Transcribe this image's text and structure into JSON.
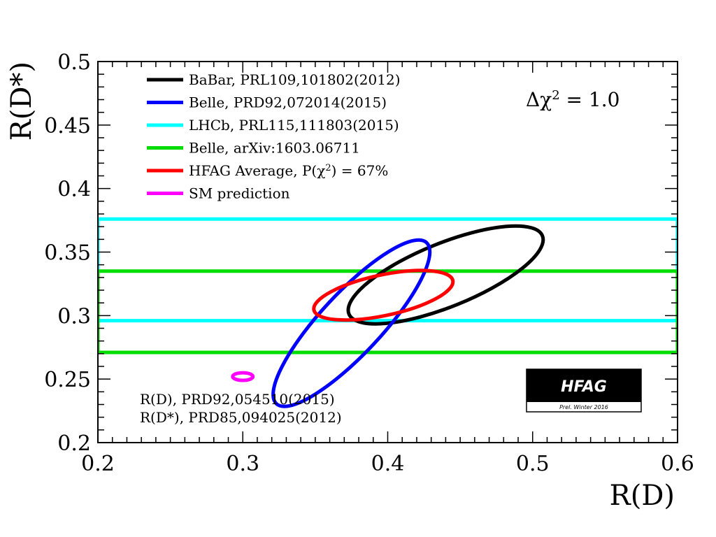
{
  "chart_data": {
    "type": "contour",
    "xlabel": "R(D)",
    "ylabel": "R(D*)",
    "xlim": [
      0.2,
      0.6
    ],
    "ylim": [
      0.2,
      0.5
    ],
    "x_ticks": [
      "0.2",
      "0.3",
      "0.4",
      "0.5",
      "0.6"
    ],
    "y_ticks": [
      "0.2",
      "0.25",
      "0.3",
      "0.35",
      "0.4",
      "0.45",
      "0.5"
    ],
    "annotation": "Δχ² = 1.0",
    "annotation_parts": {
      "prefix": "Δχ",
      "sup": "2",
      "suffix": " = 1.0"
    },
    "legend_position": "top-left",
    "series": [
      {
        "label": "BaBar, PRL109,101802(2012)",
        "color": "#000000",
        "shape": "ellipse",
        "center": [
          0.44,
          0.332
        ],
        "radii": [
          0.072,
          0.025
        ],
        "rotation_deg": -22
      },
      {
        "label": "Belle, PRD92,072014(2015)",
        "color": "#0000ff",
        "shape": "ellipse",
        "center": [
          0.375,
          0.294
        ],
        "radii": [
          0.076,
          0.024
        ],
        "rotation_deg": -47
      },
      {
        "label": "LHCb, PRL115,111803(2015)",
        "color": "#00ffff",
        "shape": "band",
        "y_range": [
          0.296,
          0.376
        ]
      },
      {
        "label": "Belle, arXiv:1603.06711",
        "color": "#00dd00",
        "shape": "band",
        "y_range": [
          0.271,
          0.335
        ]
      },
      {
        "label": "HFAG Average, P(χ",
        "label_sup": "2",
        "label_suffix": ") = 67%",
        "color": "#ff0000",
        "shape": "ellipse",
        "center": [
          0.397,
          0.316
        ],
        "radii": [
          0.049,
          0.016
        ],
        "rotation_deg": -12
      },
      {
        "label": "SM prediction",
        "color": "#ff00ff",
        "shape": "ellipse",
        "center": [
          0.3,
          0.252
        ],
        "radii": [
          0.007,
          0.003
        ],
        "rotation_deg": 0
      }
    ],
    "sm_refs": [
      "R(D), PRD92,054510(2015)",
      "R(D*), PRD85,094025(2012)"
    ],
    "logo": {
      "title": "HFAG",
      "subtitle": "Prel. Winter 2016"
    }
  }
}
